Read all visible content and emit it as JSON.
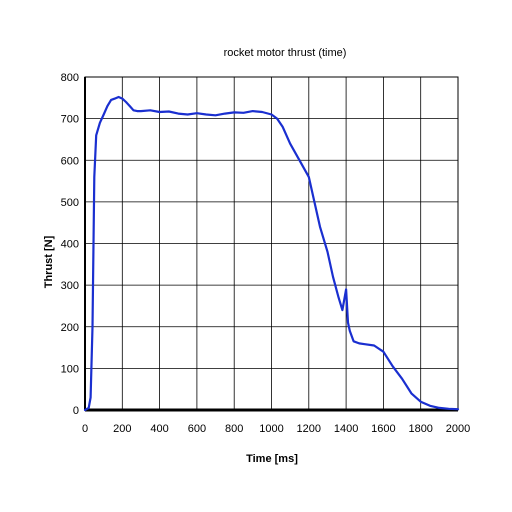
{
  "chart_data": {
    "type": "line",
    "title": "rocket motor thrust (time)",
    "xlabel": "Time [ms]",
    "ylabel": "Thrust [N]",
    "xlim": [
      0,
      2000
    ],
    "ylim": [
      0,
      800
    ],
    "x_ticks": [
      "0",
      "200",
      "400",
      "600",
      "800",
      "1000",
      "1200",
      "1400",
      "1600",
      "1800",
      "2000"
    ],
    "y_ticks": [
      "0",
      "100",
      "200",
      "300",
      "400",
      "500",
      "600",
      "700",
      "800"
    ],
    "grid": true,
    "series": [
      {
        "name": "thrust",
        "color": "#1a2fd0",
        "x": [
          0,
          20,
          30,
          40,
          50,
          60,
          80,
          100,
          120,
          140,
          160,
          180,
          200,
          220,
          240,
          260,
          280,
          300,
          350,
          400,
          450,
          500,
          550,
          600,
          650,
          700,
          750,
          800,
          850,
          900,
          950,
          1000,
          1030,
          1060,
          1100,
          1150,
          1200,
          1230,
          1260,
          1300,
          1330,
          1360,
          1380,
          1400,
          1410,
          1420,
          1440,
          1470,
          1500,
          1550,
          1600,
          1650,
          1700,
          1750,
          1800,
          1850,
          1900,
          1950,
          2000
        ],
        "y": [
          0,
          5,
          30,
          200,
          560,
          660,
          690,
          710,
          730,
          745,
          748,
          752,
          748,
          740,
          730,
          720,
          718,
          718,
          720,
          716,
          717,
          712,
          710,
          713,
          710,
          708,
          712,
          715,
          714,
          718,
          716,
          710,
          700,
          680,
          640,
          600,
          560,
          500,
          440,
          380,
          320,
          270,
          240,
          290,
          210,
          190,
          165,
          160,
          158,
          155,
          140,
          105,
          75,
          40,
          20,
          10,
          5,
          3,
          2
        ]
      }
    ]
  }
}
